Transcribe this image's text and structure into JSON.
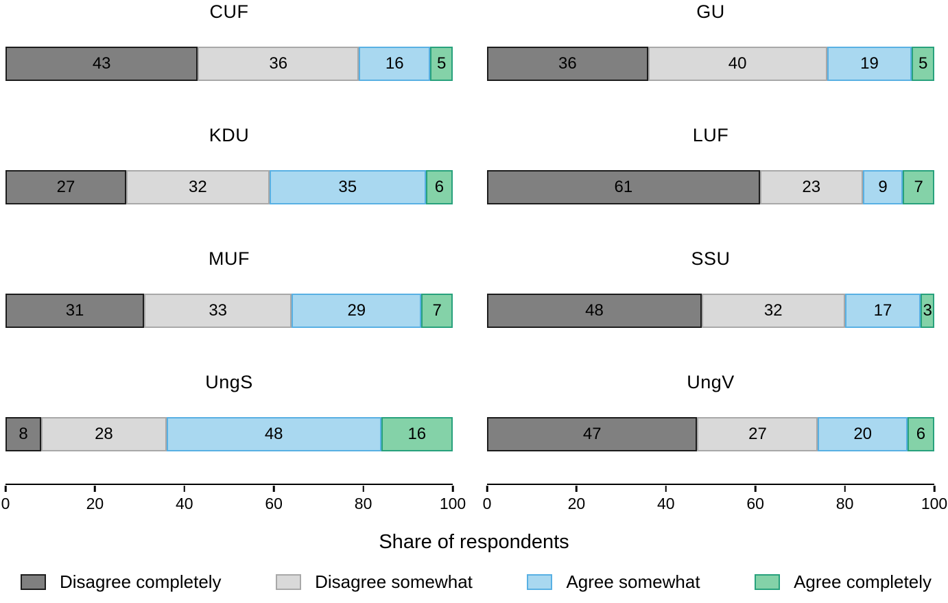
{
  "figure": {
    "xlabel": "Share of respondents"
  },
  "chart_data": {
    "type": "bar",
    "orientation": "horizontal",
    "stacked": true,
    "units": "percent",
    "title": "",
    "xlabel": "Share of respondents",
    "ylabel": "",
    "xlim": [
      0,
      100
    ],
    "x_ticks": [
      0,
      20,
      40,
      60,
      80,
      100
    ],
    "grid": false,
    "legend_position": "bottom",
    "categories": [
      "Disagree completely",
      "Disagree somewhat",
      "Agree somewhat",
      "Agree completely"
    ],
    "colors": {
      "fills": [
        "#808080",
        "#d9d9d9",
        "#a9d8f0",
        "#84d2a8"
      ],
      "borders": [
        "#1c1c1c",
        "#a8a8a8",
        "#58b0e3",
        "#27a17c"
      ]
    },
    "groups": [
      {
        "label": "CUF",
        "values": [
          43,
          36,
          16,
          5
        ]
      },
      {
        "label": "GU",
        "values": [
          36,
          40,
          19,
          5
        ]
      },
      {
        "label": "KDU",
        "values": [
          27,
          32,
          35,
          6
        ]
      },
      {
        "label": "LUF",
        "values": [
          61,
          23,
          9,
          7
        ]
      },
      {
        "label": "MUF",
        "values": [
          31,
          33,
          29,
          7
        ]
      },
      {
        "label": "SSU",
        "values": [
          48,
          32,
          17,
          3
        ]
      },
      {
        "label": "UngS",
        "values": [
          8,
          28,
          48,
          16
        ]
      },
      {
        "label": "UngV",
        "values": [
          47,
          27,
          20,
          6
        ]
      }
    ]
  }
}
